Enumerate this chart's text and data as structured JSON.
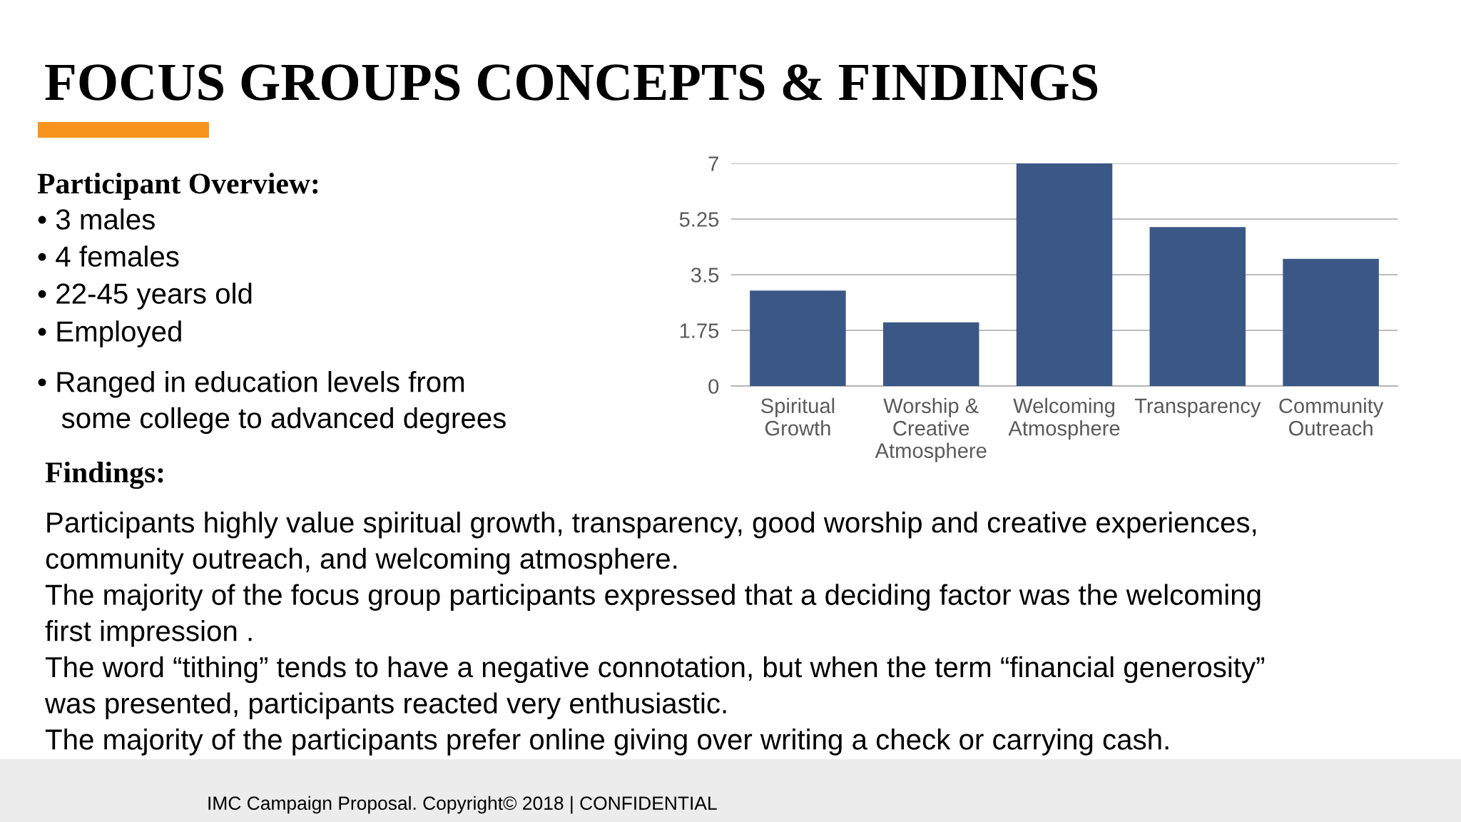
{
  "chart_data": {
    "type": "bar",
    "title": "FOCUS GROUPS CONCEPTS & FINDINGS",
    "categories": [
      "Spiritual\nGrowth",
      "Worship &\nCreative\nAtmosphere",
      "Welcoming\nAtmosphere",
      "Transparency",
      "Community\nOutreach"
    ],
    "values": [
      3,
      2,
      7,
      5,
      4
    ],
    "color": "#3b5786",
    "ylim": [
      0,
      7
    ],
    "yticks": [
      0,
      1.75,
      3.5,
      5.25,
      7
    ],
    "grid": "y",
    "annotations": [
      "Participant Overview:",
      "• 3 males",
      "• 4 females",
      "• 22-45 years old",
      "• Employed",
      "• Ranged in education levels from\n   some college to advanced degrees",
      "Findings:",
      "Participants highly value spiritual growth, transparency, good worship and creative experiences,\ncommunity outreach, and welcoming atmosphere.\nThe majority of the focus group participants expressed that a deciding factor was the welcoming\nfirst impression .\nThe word “tithing” tends to have a negative connotation, but when the term “financial generosity”\nwas presented, participants reacted very enthusiastic.\nThe majority of the participants prefer online giving over writing a check or carrying cash.",
      "IMC Campaign Proposal. Copyright© 2018 | CONFIDENTIAL"
    ]
  }
}
